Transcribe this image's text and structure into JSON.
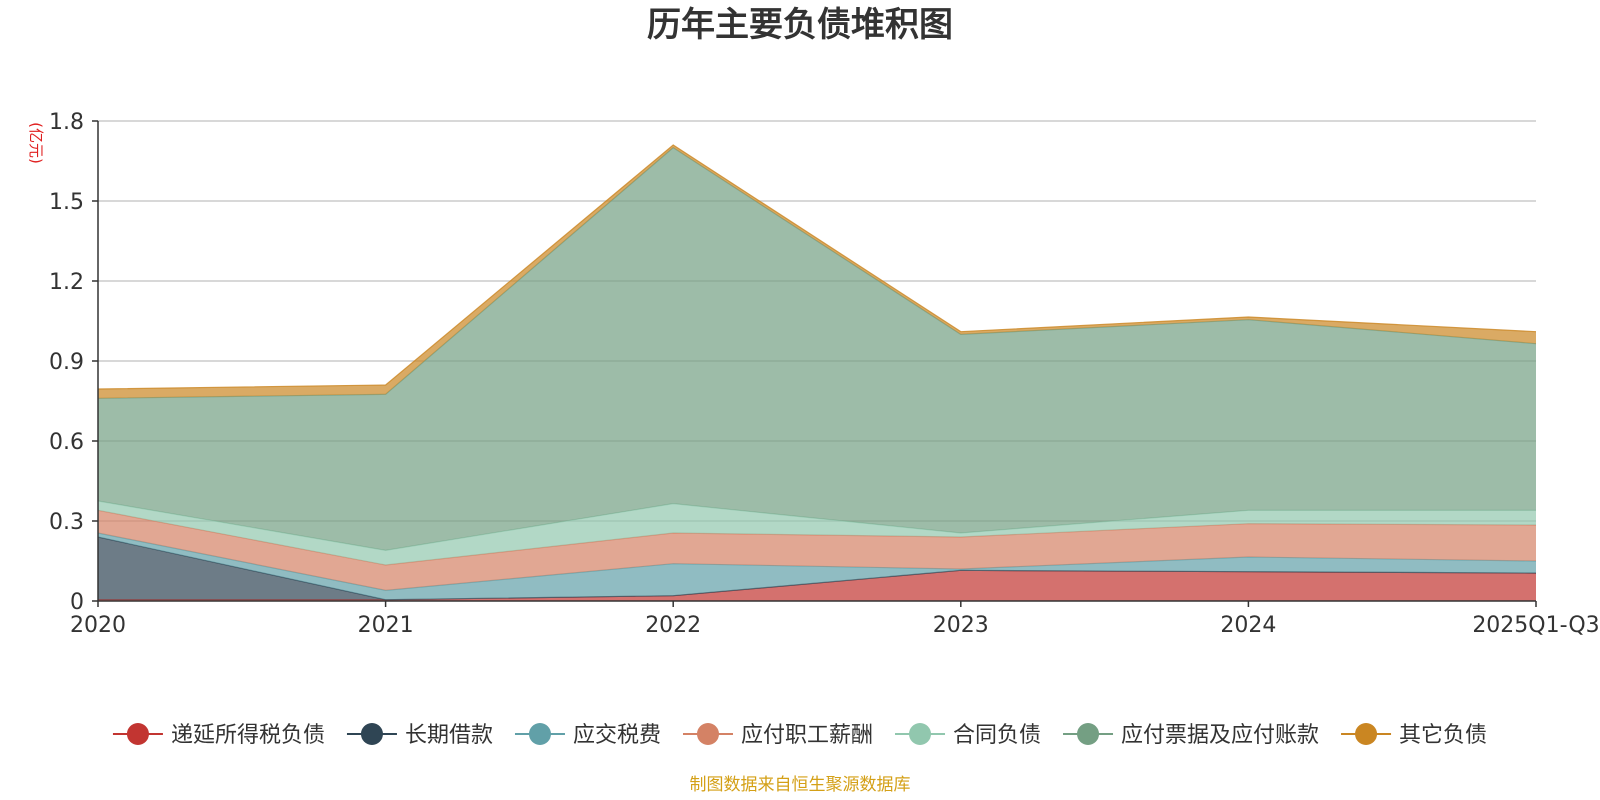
{
  "chart_data": {
    "type": "area",
    "stacked": true,
    "title": "历年主要负债堆积图",
    "unit": "(亿元)",
    "categories": [
      "2020",
      "2021",
      "2022",
      "2023",
      "2024",
      "2025Q1-Q3"
    ],
    "ylim": [
      0,
      1.8
    ],
    "yticks": [
      "0",
      "0.3",
      "0.6",
      "0.9",
      "1.2",
      "1.5",
      "1.8"
    ],
    "grid": true,
    "legend_position": "bottom",
    "series": [
      {
        "name": "递延所得税负债",
        "color": "#c23531",
        "values": [
          0.005,
          0.005,
          0.02,
          0.115,
          0.11,
          0.105
        ]
      },
      {
        "name": "长期借款",
        "color": "#2f4554",
        "values": [
          0.235,
          0.0,
          0.0,
          0.0,
          0.0,
          0.0
        ]
      },
      {
        "name": "应交税费",
        "color": "#61a0a8",
        "values": [
          0.015,
          0.035,
          0.12,
          0.005,
          0.055,
          0.045
        ]
      },
      {
        "name": "应付职工薪酬",
        "color": "#d48265",
        "values": [
          0.085,
          0.095,
          0.115,
          0.12,
          0.125,
          0.135
        ]
      },
      {
        "name": "合同负债",
        "color": "#91c7ae",
        "values": [
          0.035,
          0.055,
          0.11,
          0.015,
          0.05,
          0.055
        ]
      },
      {
        "name": "应付票据及应付账款",
        "color": "#749f83",
        "values": [
          0.385,
          0.585,
          1.335,
          0.745,
          0.715,
          0.625
        ]
      },
      {
        "name": "其它负债",
        "color": "#ca8622",
        "values": [
          0.035,
          0.035,
          0.01,
          0.01,
          0.01,
          0.045
        ]
      }
    ]
  },
  "source": "制图数据来自恒生聚源数据库"
}
